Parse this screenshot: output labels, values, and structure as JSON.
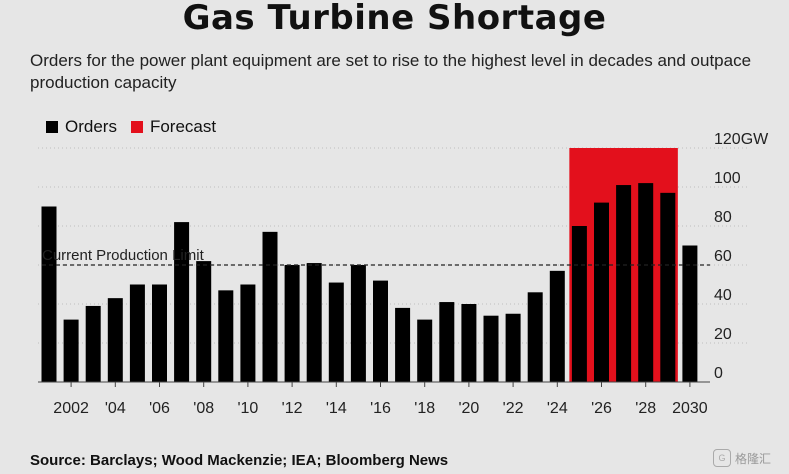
{
  "title": "Gas Turbine Shortage",
  "subtitle": "Orders for the power plant equipment are set to rise to the highest level in decades and outpace production capacity",
  "legend": [
    {
      "label": "Orders",
      "color": "#000000"
    },
    {
      "label": "Forecast",
      "color": "#e3101c"
    }
  ],
  "source": "Source: Barclays; Wood Mackenzie; IEA; Bloomberg News",
  "watermark": "格隆汇",
  "chart_data": {
    "type": "bar",
    "title": "Gas Turbine Shortage",
    "ylabel": "GW",
    "ylim": [
      0,
      120
    ],
    "yticks": [
      0,
      20,
      40,
      60,
      80,
      100,
      120
    ],
    "ytick_labels": [
      "0",
      "20",
      "40",
      "60",
      "80",
      "100",
      "120GW"
    ],
    "years": [
      2001,
      2002,
      2003,
      2004,
      2005,
      2006,
      2007,
      2008,
      2009,
      2010,
      2011,
      2012,
      2013,
      2014,
      2015,
      2016,
      2017,
      2018,
      2019,
      2020,
      2021,
      2022,
      2023,
      2024,
      2025,
      2026,
      2027,
      2028,
      2029,
      2030
    ],
    "values": [
      90,
      32,
      39,
      43,
      50,
      50,
      82,
      62,
      47,
      50,
      77,
      60,
      61,
      51,
      60,
      52,
      38,
      32,
      41,
      40,
      34,
      35,
      46,
      57,
      80,
      92,
      101,
      102,
      97,
      70
    ],
    "forecast_range": [
      2025,
      2029
    ],
    "forecast_color": "#e3101c",
    "bar_color": "#000000",
    "xtick_labels": [
      {
        "year": 2002,
        "label": "2002"
      },
      {
        "year": 2004,
        "label": "'04"
      },
      {
        "year": 2006,
        "label": "'06"
      },
      {
        "year": 2008,
        "label": "'08"
      },
      {
        "year": 2010,
        "label": "'10"
      },
      {
        "year": 2012,
        "label": "'12"
      },
      {
        "year": 2014,
        "label": "'14"
      },
      {
        "year": 2016,
        "label": "'16"
      },
      {
        "year": 2018,
        "label": "'18"
      },
      {
        "year": 2020,
        "label": "'20"
      },
      {
        "year": 2022,
        "label": "'22"
      },
      {
        "year": 2024,
        "label": "'24"
      },
      {
        "year": 2026,
        "label": "'26"
      },
      {
        "year": 2028,
        "label": "'28"
      },
      {
        "year": 2030,
        "label": "2030"
      }
    ],
    "reference_line": {
      "value": 60,
      "label": "Current Production Limit"
    },
    "grid": true
  }
}
